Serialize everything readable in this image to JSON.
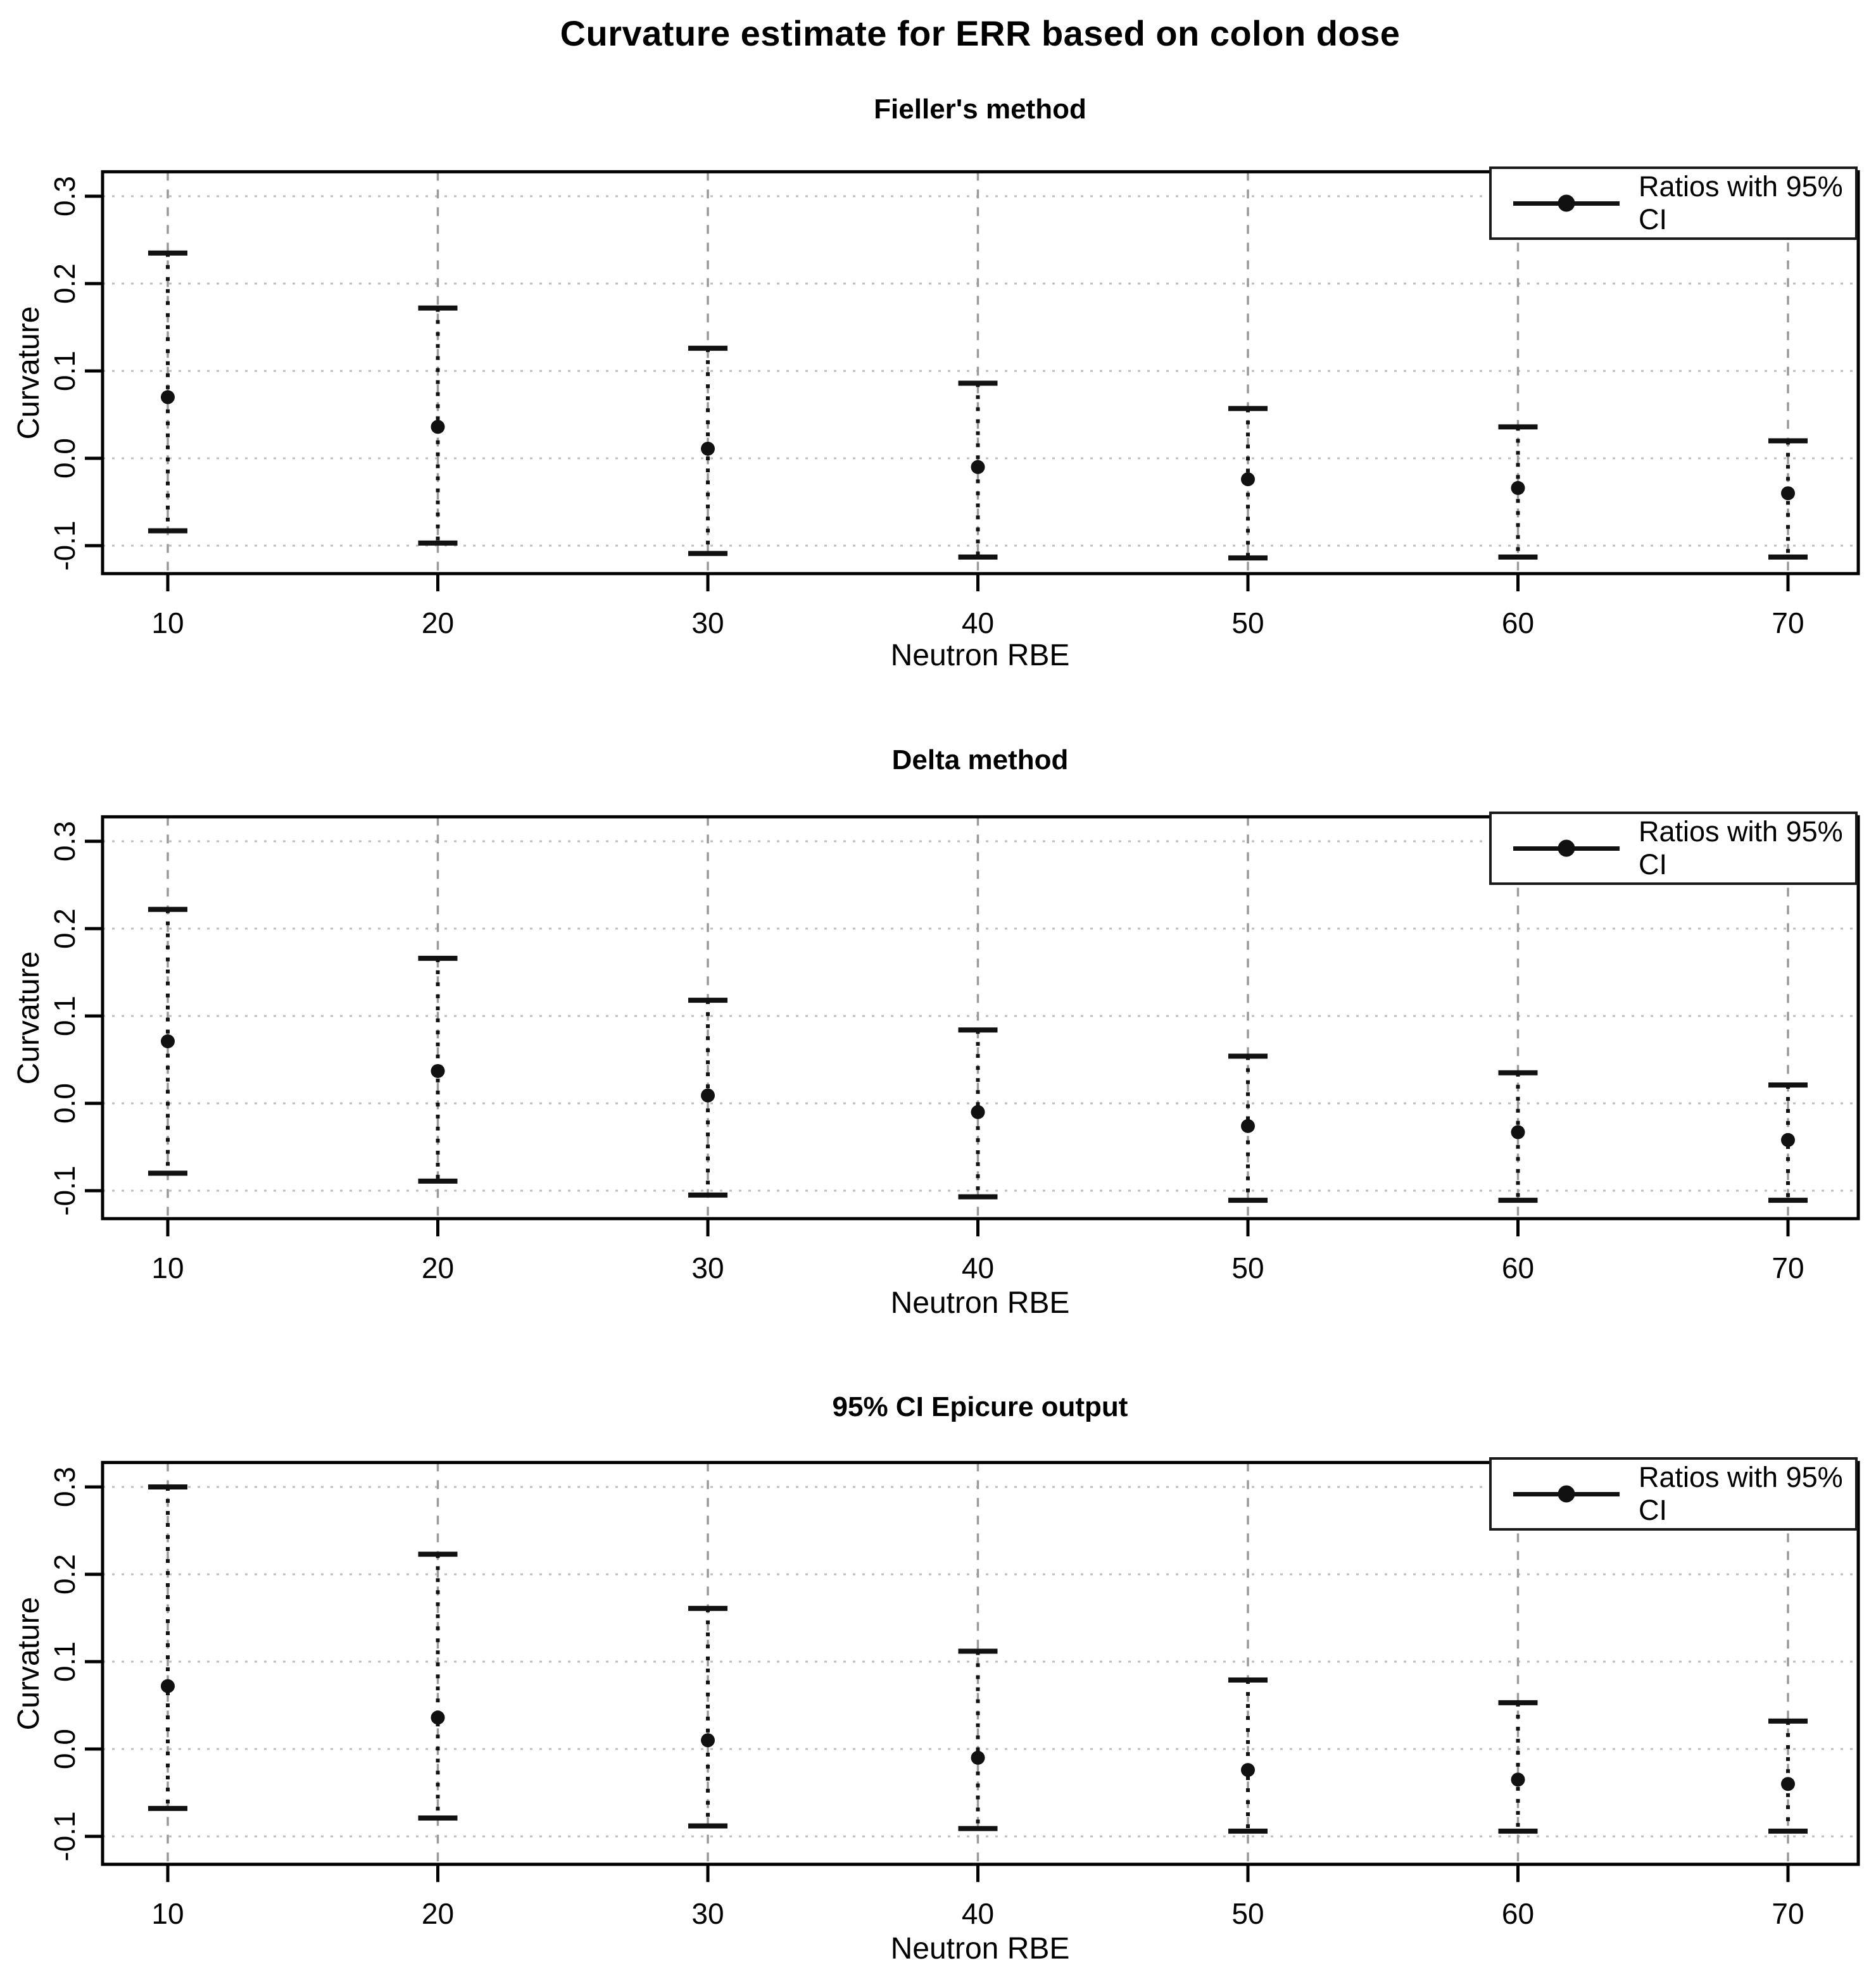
{
  "title": "Curvature estimate for ERR based on colon dose",
  "colors": {
    "foreground": "#000000",
    "error_bar": "#111111",
    "grid_horizontal": "#bdbdbd",
    "grid_vertical": "#9a9a9a",
    "background": "#ffffff"
  },
  "chart_data": [
    {
      "type": "scatter",
      "title": "Fieller's method",
      "xlabel": "Neutron RBE",
      "ylabel": "Curvature",
      "legend": "Ratios with 95% CI",
      "legend_position": "top-right",
      "grid": true,
      "x": [
        10,
        20,
        30,
        40,
        50,
        60,
        70
      ],
      "estimates": [
        0.07,
        0.036,
        0.011,
        -0.01,
        -0.024,
        -0.034,
        -0.04
      ],
      "ci_upper": [
        0.235,
        0.172,
        0.126,
        0.086,
        0.057,
        0.036,
        0.02
      ],
      "ci_lower": [
        -0.083,
        -0.097,
        -0.109,
        -0.113,
        -0.114,
        -0.113,
        -0.113
      ],
      "xticks": [
        "10",
        "20",
        "30",
        "40",
        "50",
        "60",
        "70"
      ],
      "yticks": [
        "-0.1",
        "0.0",
        "0.1",
        "0.2",
        "0.3"
      ],
      "ytick_values": [
        -0.1,
        0.0,
        0.1,
        0.2,
        0.3
      ],
      "ylim": [
        -0.132,
        0.328
      ],
      "xlim": [
        7.6,
        72.5
      ]
    },
    {
      "type": "scatter",
      "title": "Delta method",
      "xlabel": "Neutron RBE",
      "ylabel": "Curvature",
      "legend": "Ratios with 95% CI",
      "legend_position": "top-right",
      "grid": true,
      "x": [
        10,
        20,
        30,
        40,
        50,
        60,
        70
      ],
      "estimates": [
        0.071,
        0.037,
        0.009,
        -0.01,
        -0.026,
        -0.033,
        -0.042
      ],
      "ci_upper": [
        0.222,
        0.166,
        0.118,
        0.084,
        0.054,
        0.035,
        0.021
      ],
      "ci_lower": [
        -0.08,
        -0.089,
        -0.105,
        -0.107,
        -0.111,
        -0.111,
        -0.111
      ],
      "xticks": [
        "10",
        "20",
        "30",
        "40",
        "50",
        "60",
        "70"
      ],
      "yticks": [
        "-0.1",
        "0.0",
        "0.1",
        "0.2",
        "0.3"
      ],
      "ytick_values": [
        -0.1,
        0.0,
        0.1,
        0.2,
        0.3
      ],
      "ylim": [
        -0.132,
        0.328
      ],
      "xlim": [
        7.6,
        72.5
      ]
    },
    {
      "type": "scatter",
      "title": "95% CI Epicure output",
      "xlabel": "Neutron RBE",
      "ylabel": "Curvature",
      "legend": "Ratios with 95% CI",
      "legend_position": "top-right",
      "grid": true,
      "x": [
        10,
        20,
        30,
        40,
        50,
        60,
        70
      ],
      "estimates": [
        0.072,
        0.036,
        0.01,
        -0.01,
        -0.024,
        -0.035,
        -0.04
      ],
      "ci_upper": [
        0.3,
        0.223,
        0.161,
        0.112,
        0.079,
        0.053,
        0.032
      ],
      "ci_lower": [
        -0.068,
        -0.079,
        -0.088,
        -0.091,
        -0.094,
        -0.094,
        -0.094
      ],
      "xticks": [
        "10",
        "20",
        "30",
        "40",
        "50",
        "60",
        "70"
      ],
      "yticks": [
        "-0.1",
        "0.0",
        "0.1",
        "0.2",
        "0.3"
      ],
      "ytick_values": [
        -0.1,
        0.0,
        0.1,
        0.2,
        0.3
      ],
      "ylim": [
        -0.132,
        0.328
      ],
      "xlim": [
        7.6,
        72.5
      ]
    }
  ]
}
